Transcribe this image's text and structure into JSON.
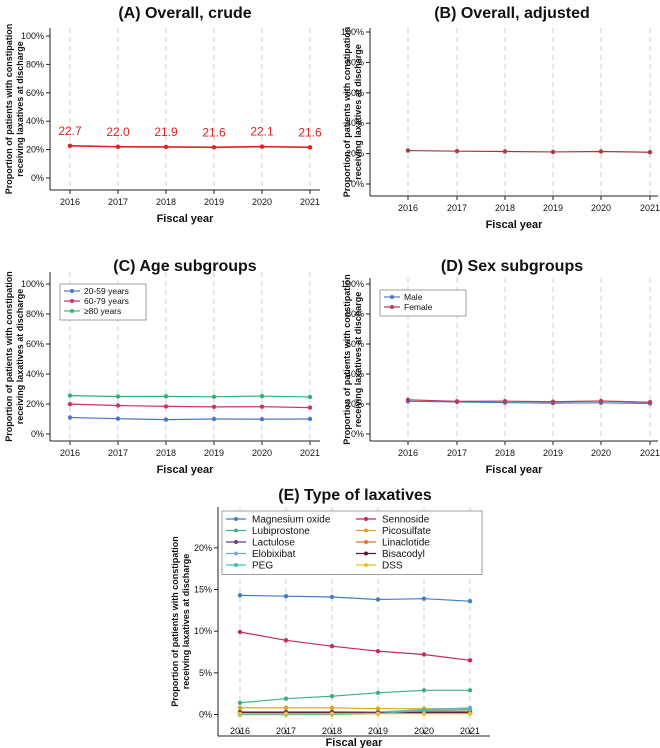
{
  "shared": {
    "xlabel": "Fiscal year",
    "ylabel_line1": "Proportion of patients with constipation",
    "ylabel_line2": "receiving laxatives at discharge",
    "years": [
      "2016",
      "2017",
      "2018",
      "2019",
      "2020",
      "2021"
    ]
  },
  "chart_data": [
    {
      "id": "A",
      "type": "line",
      "title": "(A) Overall, crude",
      "categories": [
        "2016",
        "2017",
        "2018",
        "2019",
        "2020",
        "2021"
      ],
      "ylim": [
        0,
        100
      ],
      "yticks": [
        "0%",
        "20%",
        "40%",
        "60%",
        "80%",
        "100%"
      ],
      "grid": "vertical dashed",
      "series": [
        {
          "name": "Overall, crude",
          "color": "#e02020",
          "values": [
            22.7,
            22.0,
            21.9,
            21.6,
            22.1,
            21.6
          ],
          "labels": [
            "22.7",
            "22.0",
            "21.9",
            "21.6",
            "22.1",
            "21.6"
          ]
        }
      ]
    },
    {
      "id": "B",
      "type": "line",
      "title": "(B) Overall, adjusted",
      "categories": [
        "2016",
        "2017",
        "2018",
        "2019",
        "2020",
        "2021"
      ],
      "ylim": [
        0,
        100
      ],
      "yticks": [
        "0%",
        "20%",
        "40%",
        "60%",
        "80%",
        "100%"
      ],
      "grid": "vertical dashed",
      "series": [
        {
          "name": "Overall, adjusted",
          "color": "#a83a3a",
          "values": [
            22.0,
            21.6,
            21.4,
            21.1,
            21.4,
            20.9
          ]
        }
      ]
    },
    {
      "id": "C",
      "type": "line",
      "title": "(C) Age subgroups",
      "categories": [
        "2016",
        "2017",
        "2018",
        "2019",
        "2020",
        "2021"
      ],
      "ylim": [
        0,
        100
      ],
      "yticks": [
        "0%",
        "20%",
        "40%",
        "60%",
        "80%",
        "100%"
      ],
      "grid": "vertical dashed",
      "legend": "top-left",
      "series": [
        {
          "name": "20-59 years",
          "color": "#4a78c8",
          "values": [
            11.0,
            10.2,
            9.6,
            10.0,
            9.9,
            10.0
          ]
        },
        {
          "name": "60-79 years",
          "color": "#cc3366",
          "values": [
            19.9,
            19.0,
            18.4,
            18.1,
            18.2,
            17.6
          ]
        },
        {
          "name": "≥80 years",
          "color": "#33b07a",
          "values": [
            25.6,
            25.0,
            25.1,
            24.8,
            25.3,
            24.7
          ]
        }
      ]
    },
    {
      "id": "D",
      "type": "line",
      "title": "(D) Sex subgroups",
      "categories": [
        "2016",
        "2017",
        "2018",
        "2019",
        "2020",
        "2021"
      ],
      "ylim": [
        0,
        100
      ],
      "yticks": [
        "0%",
        "20%",
        "40%",
        "60%",
        "80%",
        "100%"
      ],
      "grid": "vertical dashed",
      "legend": "top-left",
      "series": [
        {
          "name": "Male",
          "color": "#4a78c8",
          "values": [
            21.8,
            21.4,
            20.9,
            20.6,
            20.8,
            20.4
          ]
        },
        {
          "name": "Female",
          "color": "#b83a5a",
          "values": [
            22.8,
            21.8,
            21.9,
            21.5,
            22.0,
            21.2
          ]
        }
      ]
    },
    {
      "id": "E",
      "type": "line",
      "title": "(E) Type of laxatives",
      "categories": [
        "2016",
        "2017",
        "2018",
        "2019",
        "2020",
        "2021"
      ],
      "ylim": [
        -1.5,
        22.5
      ],
      "yticks": [
        "0%",
        "5%",
        "10%",
        "15%",
        "20%"
      ],
      "grid": "vertical dashed",
      "legend": "top",
      "series": [
        {
          "name": "Magnesium oxide",
          "color": "#3f7fc4",
          "values": [
            14.3,
            14.2,
            14.1,
            13.8,
            13.9,
            13.6
          ]
        },
        {
          "name": "Sennoside",
          "color": "#c42a5a",
          "values": [
            9.9,
            8.9,
            8.2,
            7.6,
            7.2,
            6.5
          ]
        },
        {
          "name": "Lubiprostone",
          "color": "#3fae8a",
          "values": [
            1.4,
            1.9,
            2.2,
            2.6,
            2.9,
            2.9
          ]
        },
        {
          "name": "Picosulfate",
          "color": "#e0a020",
          "values": [
            0.8,
            0.8,
            0.8,
            0.7,
            0.7,
            0.7
          ]
        },
        {
          "name": "Lactulose",
          "color": "#6a3f8a",
          "values": [
            0.3,
            0.3,
            0.3,
            0.3,
            0.3,
            0.3
          ]
        },
        {
          "name": "Linaclotide",
          "color": "#e0742a",
          "values": [
            0.0,
            0.1,
            0.2,
            0.3,
            0.4,
            0.4
          ]
        },
        {
          "name": "Elobixibat",
          "color": "#6fb0d8",
          "values": [
            0.0,
            0.0,
            0.0,
            0.3,
            0.6,
            0.8
          ]
        },
        {
          "name": "Bisacodyl",
          "color": "#5a1a2a",
          "values": [
            0.2,
            0.2,
            0.2,
            0.2,
            0.2,
            0.2
          ]
        },
        {
          "name": "PEG",
          "color": "#40c0b0",
          "values": [
            0.0,
            0.0,
            0.0,
            0.1,
            0.5,
            0.6
          ]
        },
        {
          "name": "DSS",
          "color": "#e8c02a",
          "values": [
            0.1,
            0.1,
            0.1,
            0.1,
            0.1,
            0.1
          ]
        }
      ]
    }
  ]
}
